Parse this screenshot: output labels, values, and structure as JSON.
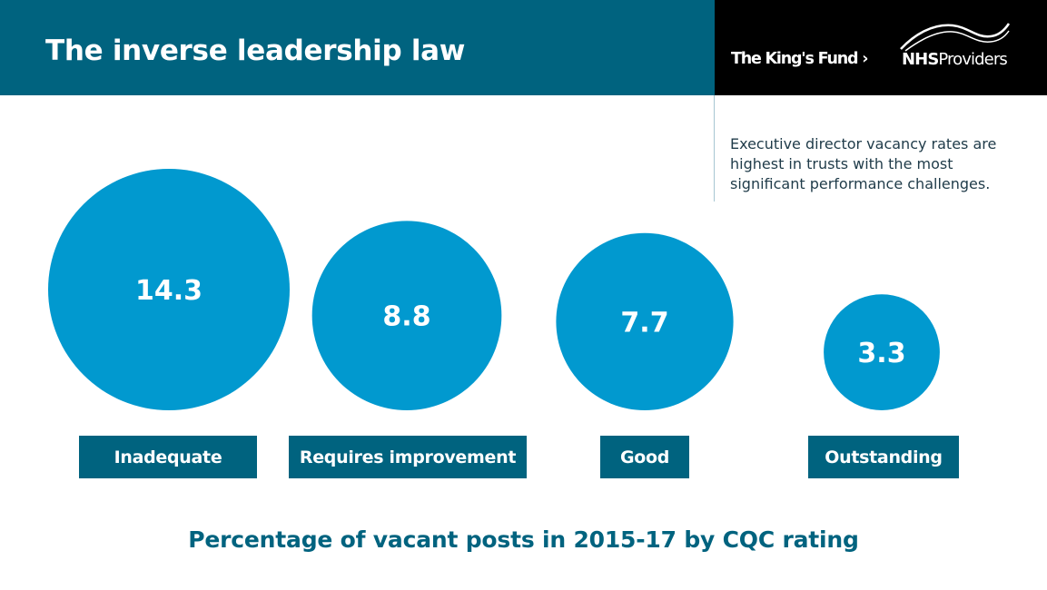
{
  "header": {
    "title": "The inverse leadership law"
  },
  "logos": {
    "kings_fund": "The King's Fund",
    "nhs_bold": "NHS",
    "nhs_rest": "Providers"
  },
  "subtitle": "Executive director vacancy rates are highest in trusts with the most significant performance challenges.",
  "chart_data": {
    "type": "bubble",
    "title": "The inverse leadership law",
    "xlabel": "Percentage of vacant posts in 2015-17 by CQC rating",
    "categories": [
      "Inadequate",
      "Requires improvement",
      "Good",
      "Outstanding"
    ],
    "values": [
      14.3,
      8.8,
      7.7,
      3.3
    ],
    "value_labels": [
      "14.3",
      "8.8",
      "7.7",
      "3.3"
    ],
    "colors": {
      "bubble": "#0199cf",
      "label_box": "#00637f",
      "header": "#00637f"
    }
  }
}
